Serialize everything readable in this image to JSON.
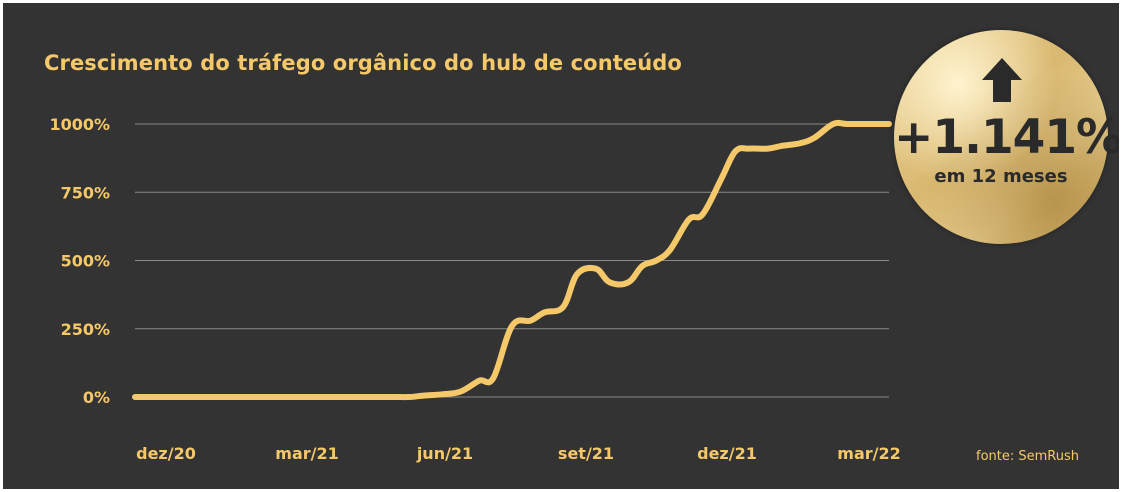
{
  "chart_data": {
    "type": "line",
    "title": "Crescimento do tráfego orgânico do hub de conteúdo",
    "source": "fonte: SemRush",
    "xlabel": "",
    "ylabel": "",
    "x_ticks": [
      "dez/20",
      "mar/21",
      "jun/21",
      "set/21",
      "dez/21",
      "mar/22"
    ],
    "y_ticks": [
      "0%",
      "250%",
      "500%",
      "750%",
      "1000%"
    ],
    "ylim": [
      0,
      1000
    ],
    "grid": true,
    "line_color": "#f5c96a",
    "x": [
      0,
      0.5,
      1,
      1.5,
      2,
      2.5,
      3,
      3.5,
      3.9,
      4.3,
      4.6,
      5,
      5.3,
      5.6,
      5.9,
      6.2,
      6.6,
      7,
      7.4,
      7.7,
      8.1,
      8.5,
      8.8,
      9.2,
      9.5,
      9.9,
      10.2,
      10.6,
      10.9,
      11.2,
      11.5,
      11.9,
      12.2,
      12.6,
      12.9,
      13.2,
      13.6,
      13.9,
      14.3,
      14.6,
      15,
      15.3,
      15.7,
      16,
      16.2
    ],
    "y": [
      0,
      0,
      0,
      0,
      0,
      0,
      0,
      0,
      0,
      0,
      0,
      0,
      0,
      0,
      0,
      5,
      10,
      20,
      60,
      70,
      260,
      280,
      310,
      330,
      450,
      470,
      420,
      420,
      480,
      500,
      540,
      650,
      670,
      800,
      900,
      910,
      910,
      920,
      930,
      950,
      1000,
      1000,
      1000,
      1000,
      1000
    ]
  },
  "badge": {
    "value": "+1.141%",
    "caption": "em 12 meses",
    "icon": "arrow-up-icon"
  }
}
